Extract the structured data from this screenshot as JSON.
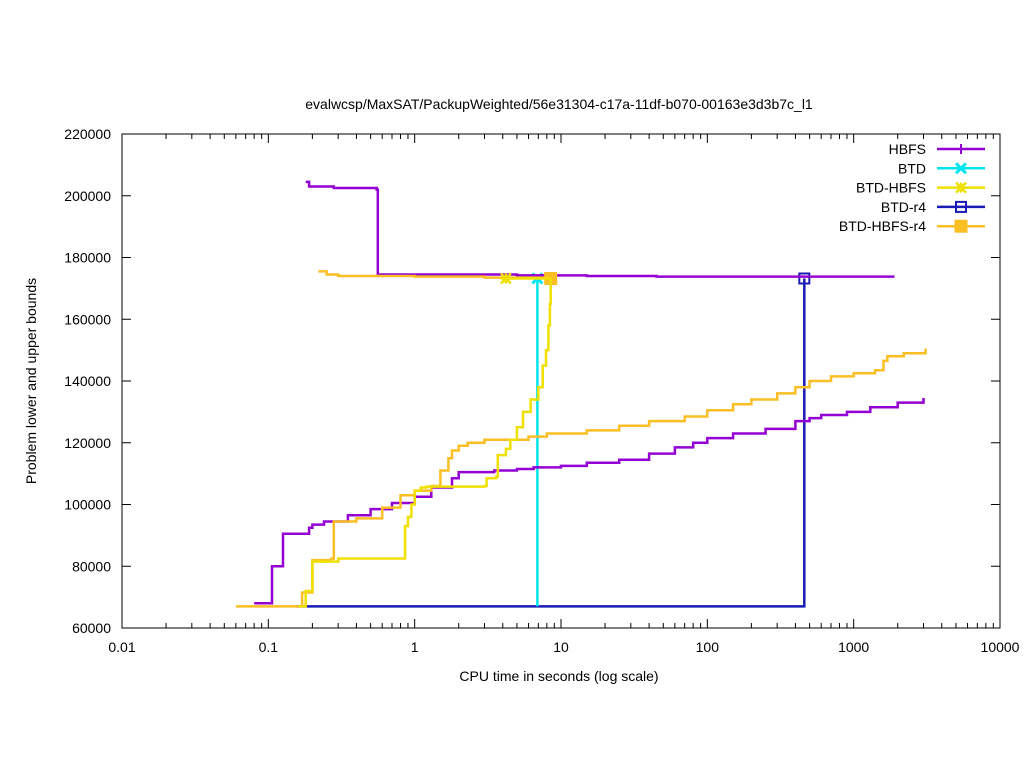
{
  "chart_data": {
    "type": "line",
    "title": "evalwcsp/MaxSAT/PackupWeighted/56e31304-c17a-11df-b070-00163e3d3b7c_l1",
    "xlabel": "CPU time in seconds (log scale)",
    "ylabel": "Problem lower and upper bounds",
    "xscale": "log",
    "xlim": [
      0.01,
      10000
    ],
    "ylim": [
      60000,
      220000
    ],
    "xticks": [
      "0.01",
      "0.1",
      "1",
      "10",
      "100",
      "1000",
      "10000"
    ],
    "xtick_values": [
      0.01,
      0.1,
      1,
      10,
      100,
      1000,
      10000
    ],
    "yticks": [
      "60000",
      "80000",
      "100000",
      "120000",
      "140000",
      "160000",
      "180000",
      "200000",
      "220000"
    ],
    "ytick_values": [
      60000,
      80000,
      100000,
      120000,
      140000,
      160000,
      180000,
      200000,
      220000
    ],
    "grid": false,
    "legend_position": "top-right",
    "series": [
      {
        "name": "HBFS",
        "color": "#9400d3",
        "marker": "plus",
        "upper": [
          [
            0.18,
            204500
          ],
          [
            0.19,
            203000
          ],
          [
            0.28,
            202500
          ],
          [
            0.55,
            202000
          ],
          [
            0.56,
            174500
          ],
          [
            5,
            174200
          ],
          [
            15,
            174000
          ],
          [
            45,
            173800
          ],
          [
            1900,
            173800
          ]
        ],
        "lower": [
          [
            0.08,
            68000
          ],
          [
            0.105,
            68000
          ],
          [
            0.106,
            80000
          ],
          [
            0.125,
            80000
          ],
          [
            0.126,
            90500
          ],
          [
            0.18,
            90500
          ],
          [
            0.19,
            92500
          ],
          [
            0.2,
            93500
          ],
          [
            0.24,
            94500
          ],
          [
            0.35,
            96500
          ],
          [
            0.5,
            98500
          ],
          [
            0.7,
            100500
          ],
          [
            1,
            102500
          ],
          [
            1.3,
            105500
          ],
          [
            1.8,
            108500
          ],
          [
            2,
            110500
          ],
          [
            3.5,
            111000
          ],
          [
            5,
            111500
          ],
          [
            6.5,
            112000
          ],
          [
            10,
            112500
          ],
          [
            15,
            113500
          ],
          [
            25,
            114500
          ],
          [
            40,
            116500
          ],
          [
            60,
            118500
          ],
          [
            80,
            120000
          ],
          [
            100,
            121500
          ],
          [
            150,
            123000
          ],
          [
            250,
            124500
          ],
          [
            400,
            127000
          ],
          [
            500,
            128000
          ],
          [
            600,
            129000
          ],
          [
            900,
            130000
          ],
          [
            1300,
            131500
          ],
          [
            2000,
            133000
          ],
          [
            3000,
            134500
          ]
        ],
        "marker_points": []
      },
      {
        "name": "BTD",
        "color": "#00e5ee",
        "marker": "cross",
        "upper": [
          [
            6.9,
            173200
          ]
        ],
        "lower": [
          [
            6.9,
            67000
          ],
          [
            6.9,
            173200
          ]
        ],
        "marker_points": [
          [
            6.9,
            173200
          ]
        ]
      },
      {
        "name": "BTD-HBFS",
        "color": "#f0e000",
        "marker": "star",
        "upper": [
          [
            4.2,
            173200
          ],
          [
            8.5,
            173200
          ]
        ],
        "lower": [
          [
            0.16,
            67000
          ],
          [
            0.18,
            72000
          ],
          [
            0.2,
            81500
          ],
          [
            0.3,
            82500
          ],
          [
            0.85,
            82500
          ],
          [
            0.86,
            93000
          ],
          [
            0.9,
            96000
          ],
          [
            0.95,
            100000
          ],
          [
            1,
            104500
          ],
          [
            1.1,
            105500
          ],
          [
            1.2,
            105800
          ],
          [
            3,
            106000
          ],
          [
            3.1,
            108500
          ],
          [
            3.6,
            109000
          ],
          [
            3.7,
            116000
          ],
          [
            4.2,
            118000
          ],
          [
            4.5,
            121000
          ],
          [
            5,
            125000
          ],
          [
            5.5,
            130000
          ],
          [
            6.2,
            134000
          ],
          [
            7,
            138000
          ],
          [
            7.5,
            145000
          ],
          [
            7.9,
            150000
          ],
          [
            8.2,
            158000
          ],
          [
            8.4,
            165000
          ],
          [
            8.5,
            173200
          ]
        ],
        "marker_points": [
          [
            4.2,
            173200
          ]
        ]
      },
      {
        "name": "BTD-r4",
        "color": "#1a1ab4",
        "marker": "open-square",
        "upper": [
          [
            460,
            173200
          ]
        ],
        "lower": [
          [
            0.155,
            67000
          ],
          [
            460,
            67000
          ],
          [
            460,
            173200
          ]
        ],
        "marker_points": [
          [
            460,
            173200
          ]
        ]
      },
      {
        "name": "BTD-HBFS-r4",
        "color": "#fbbf24",
        "marker": "filled-square",
        "upper": [
          [
            0.22,
            175500
          ],
          [
            0.25,
            174500
          ],
          [
            0.3,
            174000
          ],
          [
            1,
            173800
          ],
          [
            3,
            173500
          ],
          [
            8.5,
            173200
          ]
        ],
        "lower": [
          [
            0.06,
            67000
          ],
          [
            0.16,
            67000
          ],
          [
            0.17,
            71500
          ],
          [
            0.19,
            71500
          ],
          [
            0.2,
            82000
          ],
          [
            0.27,
            82500
          ],
          [
            0.28,
            94500
          ],
          [
            0.4,
            95500
          ],
          [
            0.6,
            99000
          ],
          [
            0.8,
            103000
          ],
          [
            1,
            104500
          ],
          [
            1.3,
            106000
          ],
          [
            1.5,
            111000
          ],
          [
            1.7,
            115000
          ],
          [
            1.8,
            117500
          ],
          [
            2,
            119000
          ],
          [
            2.3,
            120000
          ],
          [
            3,
            121000
          ],
          [
            6,
            122000
          ],
          [
            8,
            123000
          ],
          [
            15,
            124000
          ],
          [
            25,
            125500
          ],
          [
            40,
            127000
          ],
          [
            70,
            128500
          ],
          [
            100,
            130500
          ],
          [
            150,
            132500
          ],
          [
            200,
            134000
          ],
          [
            300,
            136000
          ],
          [
            400,
            138000
          ],
          [
            500,
            140000
          ],
          [
            700,
            141500
          ],
          [
            1000,
            142500
          ],
          [
            1400,
            143500
          ],
          [
            1600,
            146500
          ],
          [
            1700,
            148000
          ],
          [
            2200,
            149000
          ],
          [
            3100,
            150500
          ]
        ],
        "marker_points": [
          [
            8.5,
            173200
          ]
        ]
      }
    ]
  }
}
